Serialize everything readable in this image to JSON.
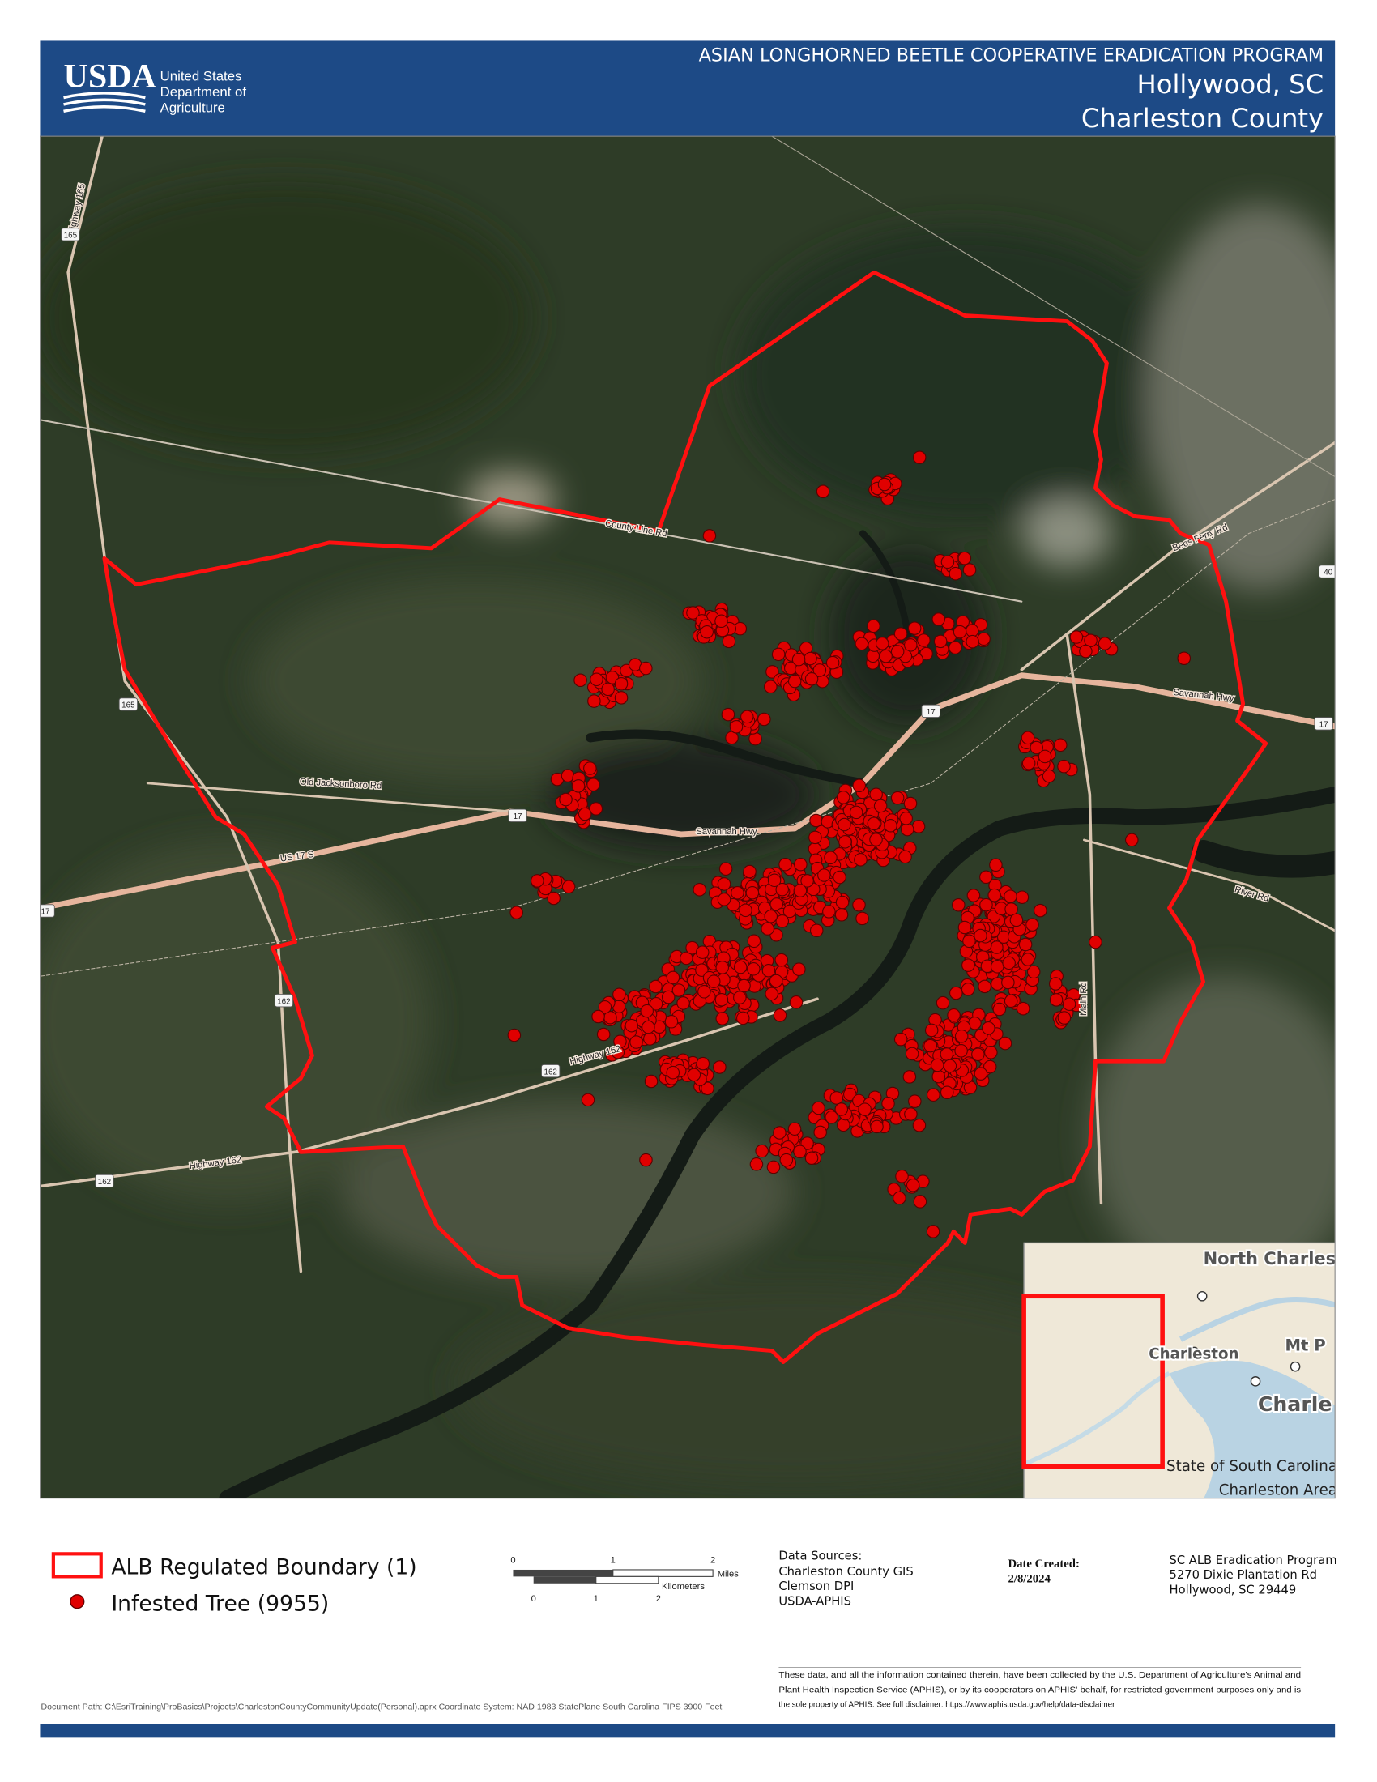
{
  "header": {
    "logo": "USDA",
    "agency": [
      "United States",
      "Department of",
      "Agriculture"
    ],
    "program": "ASIAN LONGHORNED BEETLE COOPERATIVE ERADICATION PROGRAM",
    "location": "Hollywood, SC",
    "county": "Charleston County"
  },
  "map": {
    "road_labels": [
      "Highway 165",
      "County Line Rd",
      "Old Jacksonboro Rd",
      "US 17 S",
      "Savannah Hwy",
      "Savannah Hwy",
      "Highway 162",
      "Highway 162",
      "River Rd",
      "Main Rd",
      "Bees Ferry Rd"
    ],
    "shields": [
      "165",
      "165",
      "17",
      "17",
      "17",
      "162",
      "162",
      "162",
      "40",
      "17"
    ],
    "inset": {
      "places": [
        "North Charleston",
        "Charleston",
        "Mt P",
        "Charle"
      ],
      "caption": [
        "State of South Carolina",
        "Charleston Area"
      ]
    }
  },
  "legend": {
    "items": [
      "ALB Regulated Boundary (1)",
      "Infested Tree (9955)"
    ]
  },
  "scale_bar": {
    "miles_ticks": [
      "0",
      "1",
      "2"
    ],
    "miles_unit": "Miles",
    "km_ticks": [
      "0",
      "1",
      "2"
    ],
    "km_unit": "Kilometers"
  },
  "data_sources": {
    "heading": "Data Sources:",
    "lines": [
      "Charleston County GIS",
      "Clemson DPI",
      "USDA-APHIS"
    ]
  },
  "date_created": {
    "label": "Date Created:",
    "value": "2/8/2024"
  },
  "contact": [
    "SC ALB Eradication Program",
    "5270 Dixie Plantation Rd",
    "Hollywood, SC 29449"
  ],
  "disclaimer": [
    "These data, and all the information contained therein, have been collected by the U.S. Department of Agriculture's Animal and",
    "Plant Health Inspection Service (APHIS), or by its cooperators on APHIS' behalf, for restricted government purposes only and is",
    "the sole property of APHIS. See full disclaimer: https://www.aphis.usda.gov/help/data-disclaimer"
  ],
  "document_path": "Document Path: C:\\EsriTraining\\ProBasics\\Projects\\CharlestonCountyCommunityUpdate(Personal).aprx Coordinate System: NAD 1983 StatePlane South Carolina FIPS 3900 Feet"
}
